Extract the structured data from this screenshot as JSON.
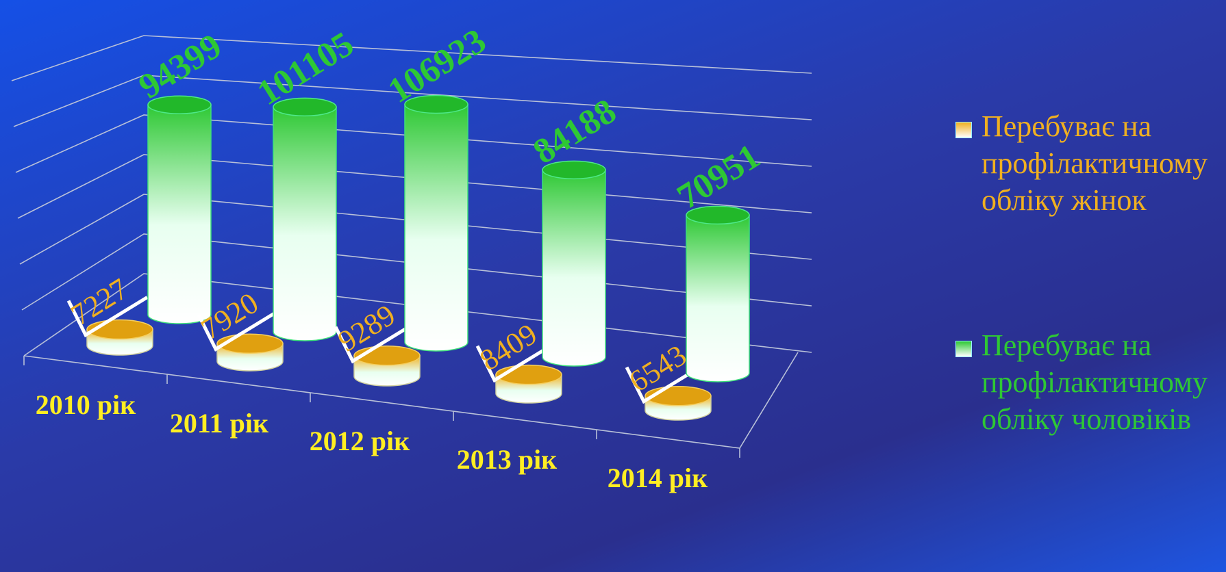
{
  "chart_data": {
    "type": "cylinder-bar",
    "categories": [
      "2010 рік",
      "2011 рік",
      "2012 рік",
      "2013 рік",
      "2014 рік"
    ],
    "series": [
      {
        "name": "Перебуває на профілактичному обліку жінок",
        "color": "#f0b020",
        "values": [
          7227,
          7920,
          9289,
          8409,
          6543
        ]
      },
      {
        "name": "Перебуває на профілактичному обліку чоловіків",
        "color": "#2ec834",
        "values": [
          94399,
          101105,
          106923,
          84188,
          70951
        ]
      }
    ],
    "ylim": [
      0,
      120000
    ],
    "grid": true,
    "legend": "right"
  }
}
